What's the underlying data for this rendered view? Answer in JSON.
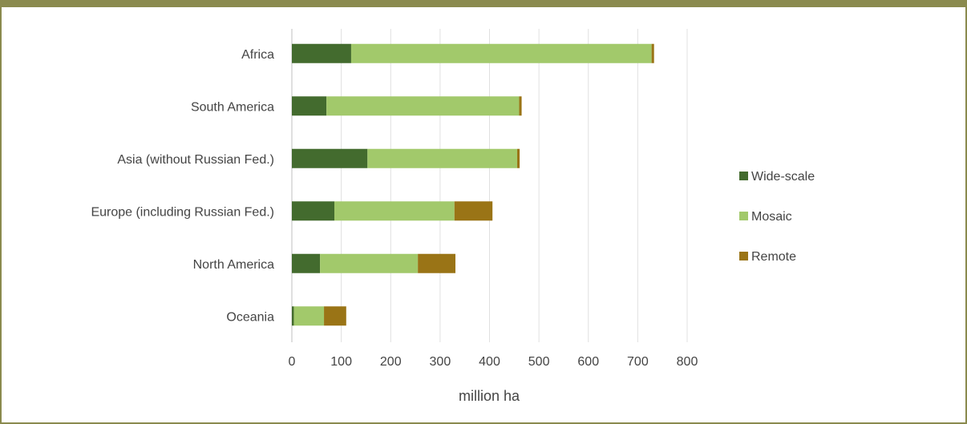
{
  "chart_data": {
    "type": "bar",
    "orientation": "horizontal",
    "stacked": true,
    "categories": [
      "Africa",
      "South America",
      "Asia (without Russian Fed.)",
      "Europe (including Russian Fed.)",
      "North America",
      "Oceania"
    ],
    "series": [
      {
        "name": "Wide-scale",
        "color": "#436b2e",
        "values": [
          120,
          70,
          153,
          86,
          57,
          4
        ]
      },
      {
        "name": "Mosaic",
        "color": "#a2c96b",
        "values": [
          608,
          390,
          303,
          243,
          198,
          61
        ]
      },
      {
        "name": "Remote",
        "color": "#9a7416",
        "values": [
          5,
          5,
          5,
          77,
          76,
          45
        ]
      }
    ],
    "xlabel": "million ha",
    "ylabel": "",
    "xlim": [
      0,
      800
    ],
    "xticks": [
      0,
      100,
      200,
      300,
      400,
      500,
      600,
      700,
      800
    ],
    "grid": "vertical",
    "legend_position": "right"
  }
}
